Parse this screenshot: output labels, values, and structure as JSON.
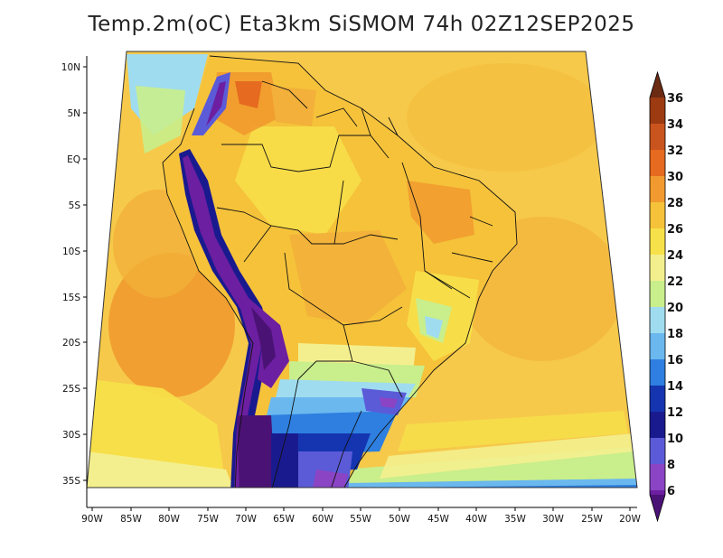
{
  "title": "Temp.2m(oC) Eta3km SiSMOM 74h 02Z12SEP2025",
  "lat_ticks": [
    "10N",
    "5N",
    "EQ",
    "5S",
    "10S",
    "15S",
    "20S",
    "25S",
    "30S",
    "35S"
  ],
  "lon_ticks": [
    "90W",
    "85W",
    "80W",
    "75W",
    "70W",
    "65W",
    "60W",
    "55W",
    "50W",
    "45W",
    "40W",
    "35W",
    "30W",
    "25W",
    "20W"
  ],
  "colorbar": {
    "labels": [
      "36",
      "34",
      "32",
      "30",
      "28",
      "26",
      "24",
      "22",
      "20",
      "18",
      "16",
      "14",
      "12",
      "10",
      "8",
      "6"
    ],
    "colors": [
      "#6b2a12",
      "#9c3a12",
      "#c9541d",
      "#e66a1f",
      "#f19a2f",
      "#f5c23a",
      "#f7e14a",
      "#f4ef8e",
      "#c9ee8c",
      "#9fdcf0",
      "#6ab8ee",
      "#2e7fe0",
      "#1535b0",
      "#1a1a8f",
      "#5b5bd8",
      "#8a44c4",
      "#6c1fa0",
      "#4b1275"
    ]
  }
}
